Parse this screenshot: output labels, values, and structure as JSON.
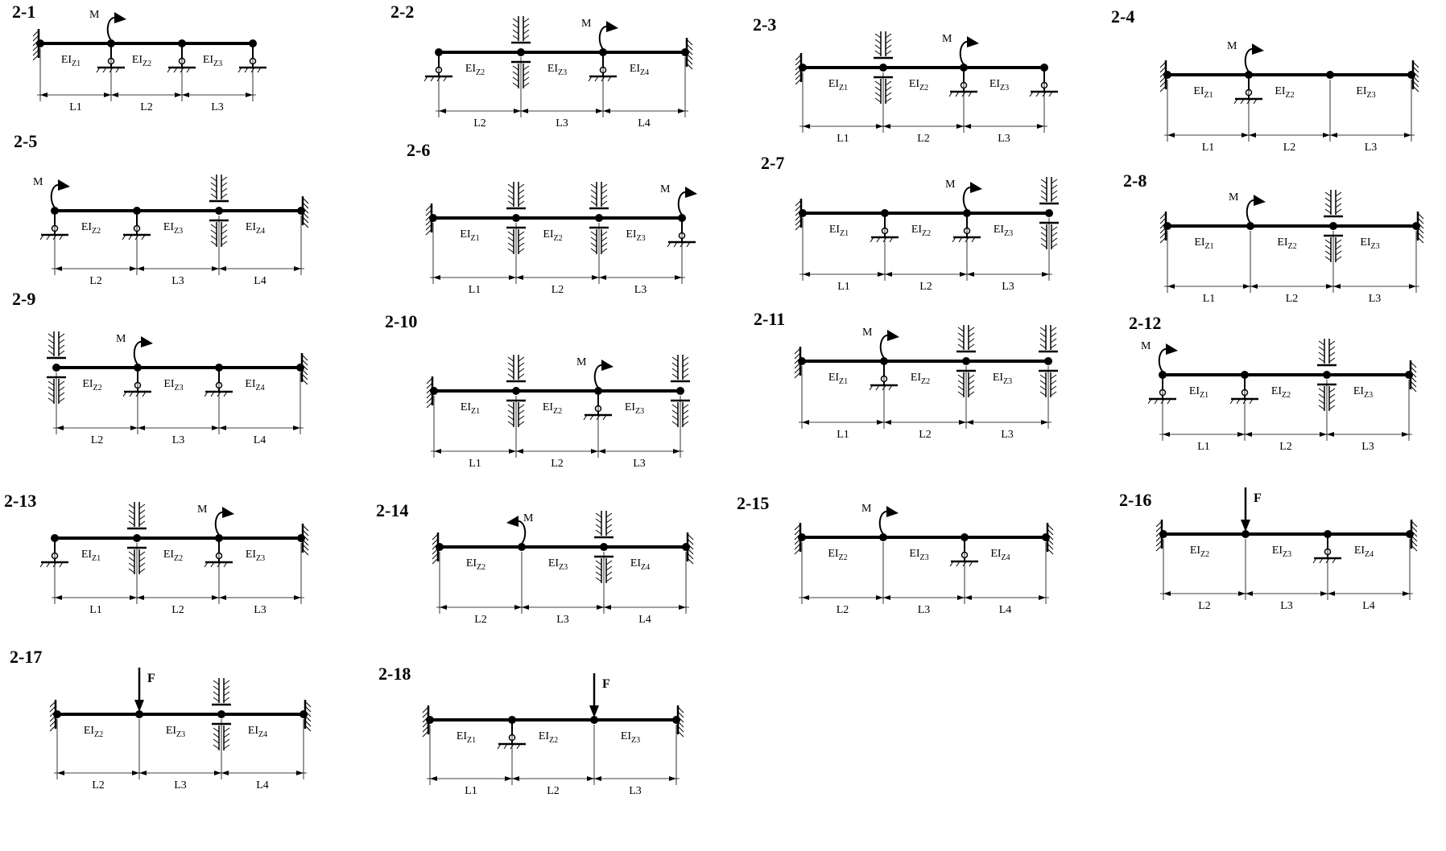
{
  "diagrams": [
    {
      "label": "2-1",
      "ei": [
        "1",
        "2",
        "3"
      ],
      "len": [
        "L1",
        "L2",
        "L3"
      ],
      "nodes": [
        {
          "t": "fixedL"
        },
        {
          "t": "pinJ",
          "m": true
        },
        {
          "t": "pinJ"
        },
        {
          "t": "pinE"
        }
      ]
    },
    {
      "label": "2-2",
      "ei": [
        "2",
        "3",
        "4"
      ],
      "len": [
        "L2",
        "L3",
        "L4"
      ],
      "nodes": [
        {
          "t": "pinE"
        },
        {
          "t": "slideJ"
        },
        {
          "t": "pinJ",
          "m": true
        },
        {
          "t": "fixedR"
        }
      ]
    },
    {
      "label": "2-3",
      "ei": [
        "1",
        "2",
        "3"
      ],
      "len": [
        "L1",
        "L2",
        "L3"
      ],
      "nodes": [
        {
          "t": "fixedL"
        },
        {
          "t": "slideJ"
        },
        {
          "t": "pinJ",
          "m": true
        },
        {
          "t": "pinE"
        }
      ]
    },
    {
      "label": "2-4",
      "ei": [
        "1",
        "2",
        "3"
      ],
      "len": [
        "L1",
        "L2",
        "L3"
      ],
      "nodes": [
        {
          "t": "fixedL"
        },
        {
          "t": "pinJ",
          "m": true
        },
        {
          "t": "hinge"
        },
        {
          "t": "fixedR"
        }
      ]
    },
    {
      "label": "2-5",
      "ei": [
        "2",
        "3",
        "4"
      ],
      "len": [
        "L2",
        "L3",
        "L4"
      ],
      "nodes": [
        {
          "t": "pinE",
          "m": true
        },
        {
          "t": "pinJ"
        },
        {
          "t": "slideJ"
        },
        {
          "t": "fixedR"
        }
      ]
    },
    {
      "label": "2-6",
      "ei": [
        "1",
        "2",
        "3"
      ],
      "len": [
        "L1",
        "L2",
        "L3"
      ],
      "nodes": [
        {
          "t": "fixedL"
        },
        {
          "t": "slideJ"
        },
        {
          "t": "slideJ"
        },
        {
          "t": "pinE",
          "m": true
        }
      ]
    },
    {
      "label": "2-7",
      "ei": [
        "1",
        "2",
        "3"
      ],
      "len": [
        "L1",
        "L2",
        "L3"
      ],
      "nodes": [
        {
          "t": "fixedL"
        },
        {
          "t": "pinJ"
        },
        {
          "t": "pinJ",
          "m": true
        },
        {
          "t": "slideE"
        }
      ]
    },
    {
      "label": "2-8",
      "ei": [
        "1",
        "2",
        "3"
      ],
      "len": [
        "L1",
        "L2",
        "L3"
      ],
      "nodes": [
        {
          "t": "fixedL"
        },
        {
          "t": "hinge",
          "m": true
        },
        {
          "t": "slideJ"
        },
        {
          "t": "fixedR"
        }
      ]
    },
    {
      "label": "2-9",
      "ei": [
        "2",
        "3",
        "4"
      ],
      "len": [
        "L2",
        "L3",
        "L4"
      ],
      "nodes": [
        {
          "t": "slideE"
        },
        {
          "t": "pinJ",
          "m": true
        },
        {
          "t": "pinJ"
        },
        {
          "t": "fixedR"
        }
      ]
    },
    {
      "label": "2-10",
      "ei": [
        "1",
        "2",
        "3"
      ],
      "len": [
        "L1",
        "L2",
        "L3"
      ],
      "nodes": [
        {
          "t": "fixedL"
        },
        {
          "t": "slideJ"
        },
        {
          "t": "pinJ",
          "m": true
        },
        {
          "t": "slideE"
        }
      ]
    },
    {
      "label": "2-11",
      "ei": [
        "1",
        "2",
        "3"
      ],
      "len": [
        "L1",
        "L2",
        "L3"
      ],
      "nodes": [
        {
          "t": "fixedL"
        },
        {
          "t": "pinJ",
          "m": true
        },
        {
          "t": "slideJ"
        },
        {
          "t": "slideE"
        }
      ]
    },
    {
      "label": "2-12",
      "ei": [
        "1",
        "2",
        "3"
      ],
      "len": [
        "L1",
        "L2",
        "L3"
      ],
      "nodes": [
        {
          "t": "pinE",
          "m": true
        },
        {
          "t": "pinJ"
        },
        {
          "t": "slideJ"
        },
        {
          "t": "fixedR"
        }
      ]
    },
    {
      "label": "2-13",
      "ei": [
        "1",
        "2",
        "3"
      ],
      "len": [
        "L1",
        "L2",
        "L3"
      ],
      "nodes": [
        {
          "t": "pinE"
        },
        {
          "t": "slideJ"
        },
        {
          "t": "pinJ",
          "m": true
        },
        {
          "t": "fixedR"
        }
      ]
    },
    {
      "label": "2-14",
      "ei": [
        "2",
        "3",
        "4"
      ],
      "len": [
        "L2",
        "L3",
        "L4"
      ],
      "nodes": [
        {
          "t": "fixedL"
        },
        {
          "t": "hinge",
          "m": true,
          "mdir": "left"
        },
        {
          "t": "slideJ"
        },
        {
          "t": "fixedR"
        }
      ]
    },
    {
      "label": "2-15",
      "ei": [
        "2",
        "3",
        "4"
      ],
      "len": [
        "L2",
        "L3",
        "L4"
      ],
      "nodes": [
        {
          "t": "fixedL"
        },
        {
          "t": "hinge",
          "m": true
        },
        {
          "t": "pinJ"
        },
        {
          "t": "fixedR"
        }
      ]
    },
    {
      "label": "2-16",
      "ei": [
        "2",
        "3",
        "4"
      ],
      "len": [
        "L2",
        "L3",
        "L4"
      ],
      "nodes": [
        {
          "t": "fixedL"
        },
        {
          "t": "hinge",
          "f": true
        },
        {
          "t": "pinJ"
        },
        {
          "t": "fixedR"
        }
      ]
    },
    {
      "label": "2-17",
      "ei": [
        "2",
        "3",
        "4"
      ],
      "len": [
        "L2",
        "L3",
        "L4"
      ],
      "nodes": [
        {
          "t": "fixedL"
        },
        {
          "t": "hinge",
          "f": true
        },
        {
          "t": "slideJ"
        },
        {
          "t": "fixedR"
        }
      ]
    },
    {
      "label": "2-18",
      "ei": [
        "1",
        "2",
        "3"
      ],
      "len": [
        "L1",
        "L2",
        "L3"
      ],
      "nodes": [
        {
          "t": "fixedL"
        },
        {
          "t": "pinJ"
        },
        {
          "t": "hinge",
          "f": true
        },
        {
          "t": "fixedR"
        }
      ]
    }
  ],
  "text": {
    "ei_prefix": "EI",
    "ei_sub_prefix": "Z",
    "moment": "M",
    "force": "F"
  }
}
